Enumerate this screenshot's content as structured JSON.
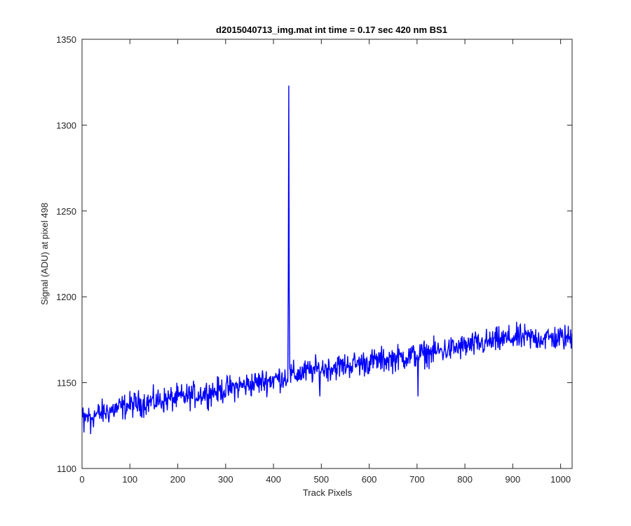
{
  "chart_data": {
    "type": "line",
    "title": "d2015040713_img.mat int time = 0.17 sec  420 nm BS1",
    "xlabel": "Track Pixels",
    "ylabel": "Signal (ADU) at pixel 498",
    "xlim": [
      0,
      1024
    ],
    "ylim": [
      1100,
      1350
    ],
    "xticks": [
      0,
      100,
      200,
      300,
      400,
      500,
      600,
      700,
      800,
      900,
      1000
    ],
    "yticks": [
      1100,
      1150,
      1200,
      1250,
      1300,
      1350
    ],
    "grid": false,
    "legend": "none",
    "series": [
      {
        "color": "#0000ff",
        "trend": {
          "x": [
            0,
            100,
            200,
            300,
            400,
            500,
            600,
            700,
            800,
            900,
            1024
          ],
          "y": [
            1129,
            1137,
            1141,
            1146,
            1152,
            1158,
            1162,
            1166,
            1171,
            1176,
            1176
          ]
        },
        "noise_amplitude": 5,
        "spikes": [
          {
            "x": 431,
            "y": 1210
          },
          {
            "x": 432,
            "y": 1323
          },
          {
            "x": 433,
            "y": 1200
          }
        ],
        "dips": [
          {
            "x": 4,
            "y": 1121
          },
          {
            "x": 18,
            "y": 1120
          },
          {
            "x": 497,
            "y": 1142
          },
          {
            "x": 702,
            "y": 1142
          }
        ]
      }
    ]
  }
}
